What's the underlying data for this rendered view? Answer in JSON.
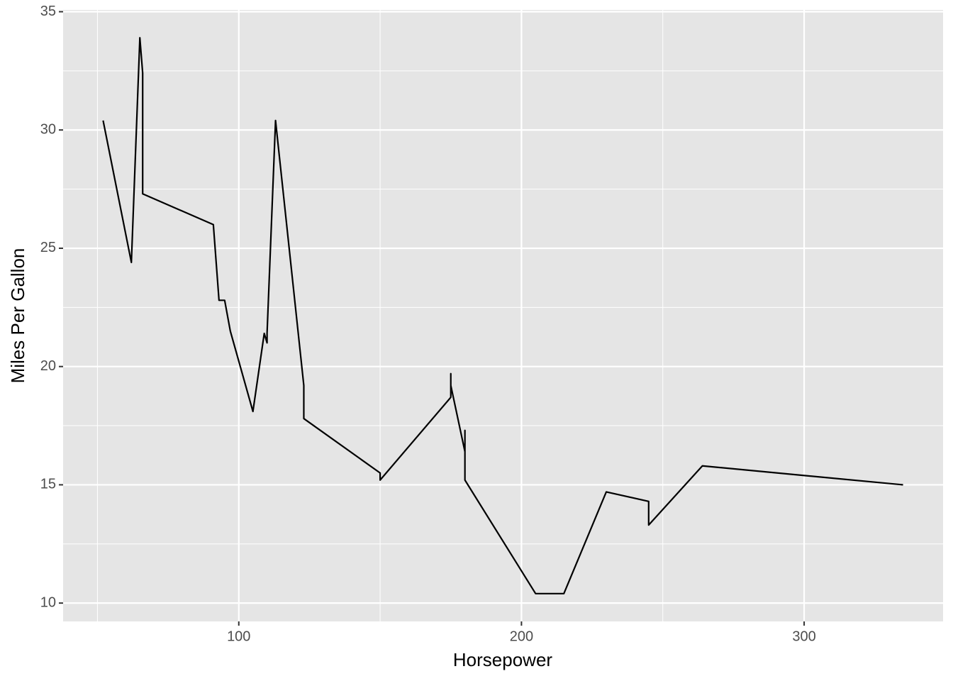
{
  "chart_data": {
    "type": "line",
    "x_label": "Horsepower",
    "y_label": "Miles Per Gallon",
    "x": [
      52,
      62,
      65,
      66,
      66,
      91,
      93,
      95,
      97,
      105,
      109,
      110,
      110,
      110,
      113,
      123,
      123,
      150,
      150,
      175,
      175,
      175,
      180,
      180,
      180,
      205,
      215,
      230,
      245,
      245,
      264,
      335
    ],
    "series": [
      {
        "color": "#000000",
        "values": [
          30.4,
          24.4,
          33.9,
          32.4,
          27.3,
          26.0,
          22.8,
          22.8,
          21.5,
          18.1,
          21.4,
          21.0,
          21.0,
          21.4,
          30.4,
          19.2,
          17.8,
          15.5,
          15.2,
          18.7,
          19.7,
          19.2,
          16.4,
          17.3,
          15.2,
          10.4,
          10.4,
          14.7,
          14.3,
          13.3,
          15.8,
          15.0
        ]
      }
    ],
    "xlim": [
      37.85,
      349.15
    ],
    "ylim": [
      9.225,
      35.075
    ],
    "xticks": [
      100,
      200,
      300
    ],
    "yticks": [
      10,
      15,
      20,
      25,
      30,
      35
    ],
    "x_minor_grid": [
      50,
      150,
      250
    ],
    "y_minor_grid": [
      12.5,
      17.5,
      22.5,
      27.5,
      32.5
    ],
    "grid": true,
    "panel_color": "#e5e5e5"
  }
}
